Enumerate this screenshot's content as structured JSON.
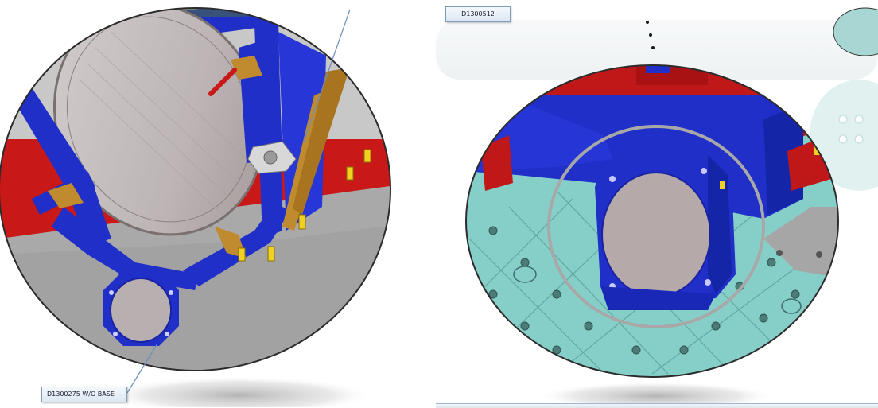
{
  "callouts": {
    "top": "D1300512",
    "bottom": "D1300275 W/O BASE"
  },
  "colors": {
    "frame_blue": "#1f2fc8",
    "red": "#c01818",
    "table_teal": "#86cfc8",
    "floor_gray": "#a5a5a5",
    "glass": "#b8b0b0",
    "wood": "#c08a2e",
    "yellow_bolt": "#f0d020",
    "leader_line": "#6a8fc0"
  },
  "icons": [
    "hexagonal-lens-mount-icon",
    "ring-optic-icon",
    "mounting-bolt-icon"
  ]
}
